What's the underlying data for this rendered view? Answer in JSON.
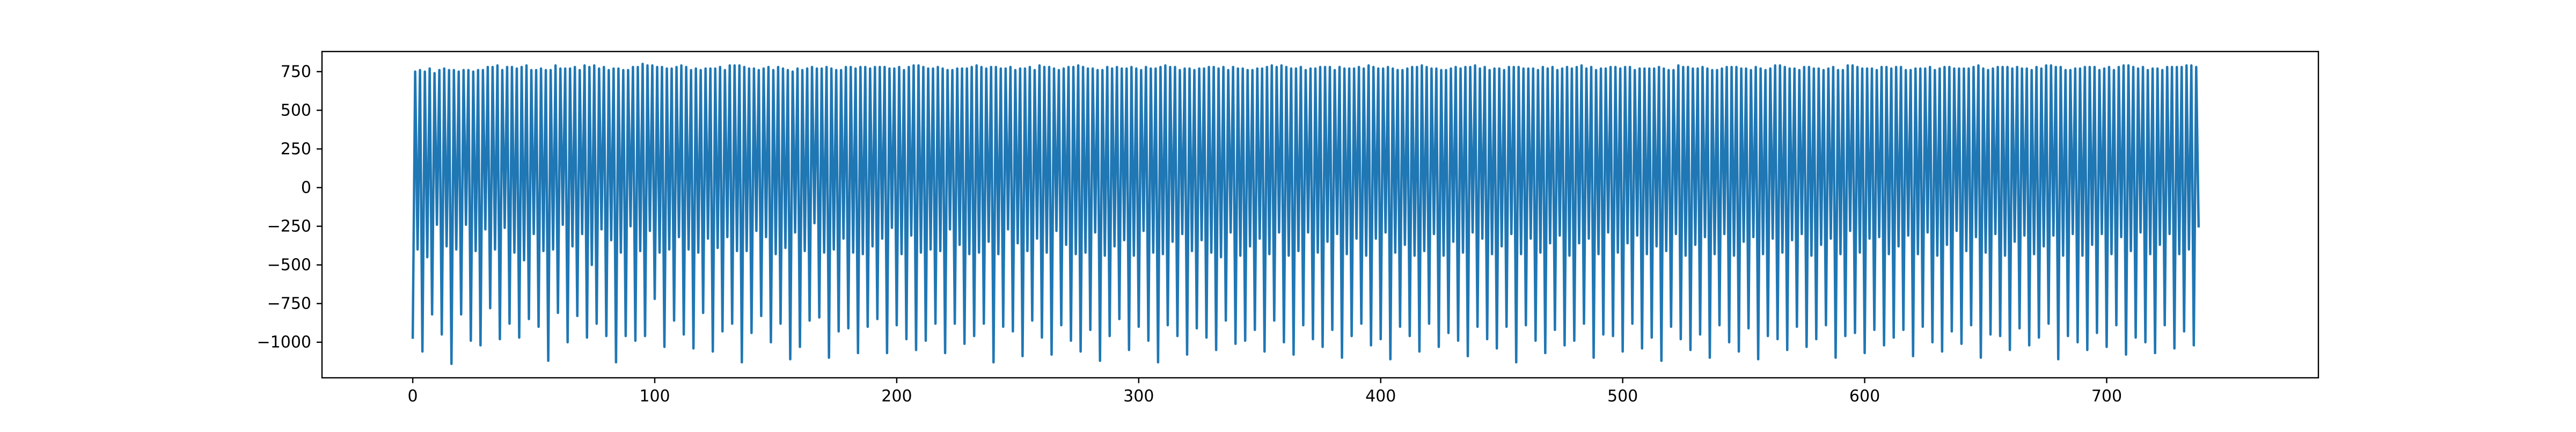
{
  "chart_data": {
    "type": "line",
    "title": "",
    "xlabel": "",
    "ylabel": "",
    "xlim": [
      -37.5,
      787.5
    ],
    "ylim": [
      -1230,
      880
    ],
    "xticks": [
      0,
      100,
      200,
      300,
      400,
      500,
      600,
      700
    ],
    "yticks": [
      -1000,
      -750,
      -500,
      -250,
      0,
      250,
      500,
      750
    ],
    "grid": false,
    "legend": "none",
    "line_color": "#1f77b4",
    "series": [
      {
        "x_start": 0,
        "x_step": 1,
        "values": [
          -970,
          750,
          -400,
          760,
          -1060,
          750,
          -450,
          770,
          -820,
          740,
          -240,
          760,
          -950,
          770,
          -380,
          760,
          -1140,
          760,
          -400,
          750,
          -820,
          760,
          -240,
          760,
          -990,
          750,
          -410,
          760,
          -1020,
          760,
          -270,
          780,
          -780,
          780,
          -400,
          790,
          -980,
          760,
          -260,
          780,
          -880,
          780,
          -420,
          770,
          -970,
          780,
          -470,
          790,
          -850,
          760,
          -300,
          760,
          -900,
          770,
          -410,
          760,
          -1120,
          760,
          -400,
          790,
          -810,
          770,
          -240,
          770,
          -1000,
          770,
          -380,
          780,
          -830,
          760,
          -300,
          790,
          -970,
          780,
          -500,
          790,
          -880,
          770,
          -270,
          780,
          -960,
          760,
          -340,
          770,
          -1130,
          770,
          -420,
          760,
          -960,
          760,
          -250,
          780,
          -990,
          780,
          -410,
          800,
          -960,
          790,
          -280,
          790,
          -720,
          780,
          -420,
          780,
          -1030,
          770,
          -400,
          770,
          -860,
          780,
          -320,
          790,
          -950,
          780,
          -400,
          760,
          -1040,
          770,
          -420,
          760,
          -810,
          770,
          -330,
          770,
          -1060,
          770,
          -390,
          780,
          -930,
          760,
          -320,
          790,
          -880,
          790,
          -410,
          790,
          -1130,
          780,
          -410,
          770,
          -940,
          770,
          -280,
          760,
          -830,
          770,
          -320,
          780,
          -1000,
          760,
          -430,
          780,
          -880,
          770,
          -390,
          760,
          -1110,
          750,
          -290,
          770,
          -1030,
          760,
          -410,
          770,
          -860,
          780,
          -230,
          770,
          -840,
          770,
          -420,
          780,
          -1100,
          770,
          -400,
          760,
          -930,
          760,
          -330,
          780,
          -910,
          780,
          -420,
          770,
          -1070,
          780,
          -430,
          780,
          -900,
          770,
          -380,
          780,
          -850,
          780,
          -330,
          780,
          -1070,
          770,
          -260,
          770,
          -890,
          780,
          -430,
          760,
          -980,
          780,
          -310,
          790,
          -1050,
          790,
          -420,
          780,
          -990,
          770,
          -400,
          770,
          -880,
          780,
          -410,
          770,
          -1070,
          760,
          -270,
          760,
          -880,
          770,
          -370,
          770,
          -1010,
          770,
          -430,
          780,
          -960,
          790,
          -420,
          780,
          -880,
          770,
          -350,
          780,
          -1130,
          780,
          -430,
          770,
          -900,
          770,
          -270,
          780,
          -930,
          760,
          -360,
          770,
          -1090,
          770,
          -410,
          780,
          -860,
          760,
          -330,
          790,
          -970,
          780,
          -420,
          780,
          -1080,
          770,
          -280,
          760,
          -890,
          770,
          -370,
          780,
          -990,
          780,
          -430,
          790,
          -1060,
          780,
          -420,
          770,
          -920,
          770,
          -290,
          760,
          -1120,
          760,
          -440,
          780,
          -960,
          770,
          -380,
          780,
          -850,
          770,
          -340,
          770,
          -1050,
          780,
          -440,
          770,
          -900,
          760,
          -280,
          780,
          -990,
          770,
          -420,
          770,
          -1130,
          780,
          -430,
          790,
          -890,
          780,
          -350,
          780,
          -960,
          760,
          -300,
          770,
          -1080,
          770,
          -410,
          760,
          -910,
          770,
          -340,
          770,
          -970,
          780,
          -420,
          780,
          -1050,
          770,
          -450,
          780,
          -860,
          760,
          -290,
          780,
          -1010,
          770,
          -440,
          770,
          -990,
          760,
          -380,
          760,
          -920,
          770,
          -330,
          770,
          -1060,
          780,
          -430,
          790,
          -860,
          780,
          -290,
          790,
          -1000,
          780,
          -440,
          770,
          -1080,
          770,
          -410,
          780,
          -890,
          760,
          -290,
          770,
          -980,
          770,
          -420,
          780,
          -1030,
          780,
          -350,
          780,
          -920,
          760,
          -300,
          780,
          -1100,
          770,
          -430,
          770,
          -960,
          770,
          -330,
          780,
          -880,
          770,
          -440,
          790,
          -1020,
          780,
          -330,
          770,
          -980,
          770,
          -290,
          780,
          -1110,
          770,
          -420,
          760,
          -900,
          760,
          -370,
          770,
          -960,
          780,
          -440,
          780,
          -1060,
          790,
          -410,
          780,
          -880,
          770,
          -300,
          770,
          -1030,
          760,
          -440,
          760,
          -940,
          770,
          -350,
          780,
          -990,
          770,
          -420,
          780,
          -1090,
          780,
          -290,
          790,
          -900,
          770,
          -330,
          780,
          -980,
          760,
          -430,
          770,
          -1040,
          770,
          -380,
          760,
          -900,
          780,
          -300,
          780,
          -1130,
          780,
          -430,
          770,
          -890,
          770,
          -330,
          770,
          -990,
          760,
          -420,
          780,
          -1070,
          770,
          -360,
          780,
          -920,
          760,
          -310,
          770,
          -1020,
          780,
          -440,
          770,
          -990,
          780,
          -360,
          790,
          -880,
          770,
          -330,
          780,
          -1100,
          760,
          -430,
          770,
          -950,
          770,
          -290,
          780,
          -960,
          780,
          -420,
          770,
          -1060,
          780,
          -360,
          780,
          -880,
          760,
          -310,
          770,
          -1040,
          770,
          -430,
          770,
          -970,
          770,
          -380,
          780,
          -1120,
          770,
          -410,
          760,
          -900,
          760,
          -300,
          790,
          -980,
          780,
          -440,
          780,
          -1050,
          770,
          -370,
          770,
          -950,
          780,
          -320,
          770,
          -1100,
          760,
          -430,
          760,
          -890,
          770,
          -300,
          780,
          -1000,
          780,
          -440,
          780,
          -1060,
          770,
          -350,
          770,
          -910,
          760,
          -320,
          780,
          -1110,
          770,
          -430,
          760,
          -960,
          770,
          -330,
          790,
          -980,
          790,
          -420,
          780,
          -1050,
          770,
          -340,
          770,
          -900,
          760,
          -300,
          780,
          -1030,
          780,
          -440,
          770,
          -980,
          770,
          -370,
          760,
          -890,
          770,
          -330,
          780,
          -1100,
          760,
          -430,
          760,
          -960,
          790,
          -280,
          790,
          -940,
          780,
          -420,
          770,
          -1070,
          770,
          -330,
          770,
          -920,
          760,
          -320,
          780,
          -1020,
          780,
          -430,
          770,
          -970,
          780,
          -380,
          780,
          -920,
          760,
          -310,
          760,
          -1090,
          770,
          -430,
          770,
          -900,
          770,
          -290,
          780,
          -1000,
          760,
          -440,
          770,
          -1060,
          780,
          -370,
          780,
          -930,
          770,
          -280,
          770,
          -1010,
          770,
          -410,
          770,
          -890,
          780,
          -320,
          790,
          -1100,
          770,
          -420,
          760,
          -950,
          770,
          -300,
          780,
          -960,
          780,
          -440,
          780,
          -1050,
          770,
          -350,
          780,
          -910,
          770,
          -310,
          770,
          -1020,
          760,
          -430,
          780,
          -970,
          770,
          -380,
          790,
          -880,
          790,
          -310,
          780,
          -1110,
          780,
          -440,
          760,
          -960,
          760,
          -300,
          770,
          -1000,
          770,
          -440,
          780,
          -1050,
          780,
          -370,
          780,
          -940,
          760,
          -300,
          770,
          -1030,
          780,
          -430,
          760,
          -890,
          780,
          -320,
          790,
          -1080,
          790,
          -410,
          780,
          -970,
          770,
          -290,
          780,
          -1000,
          760,
          -430,
          770,
          -1070,
          770,
          -370,
          760,
          -890,
          780,
          -300,
          780,
          -1040,
          780,
          -430,
          780,
          -930,
          790,
          -400,
          790,
          -1020,
          780,
          -250
        ]
      }
    ]
  }
}
